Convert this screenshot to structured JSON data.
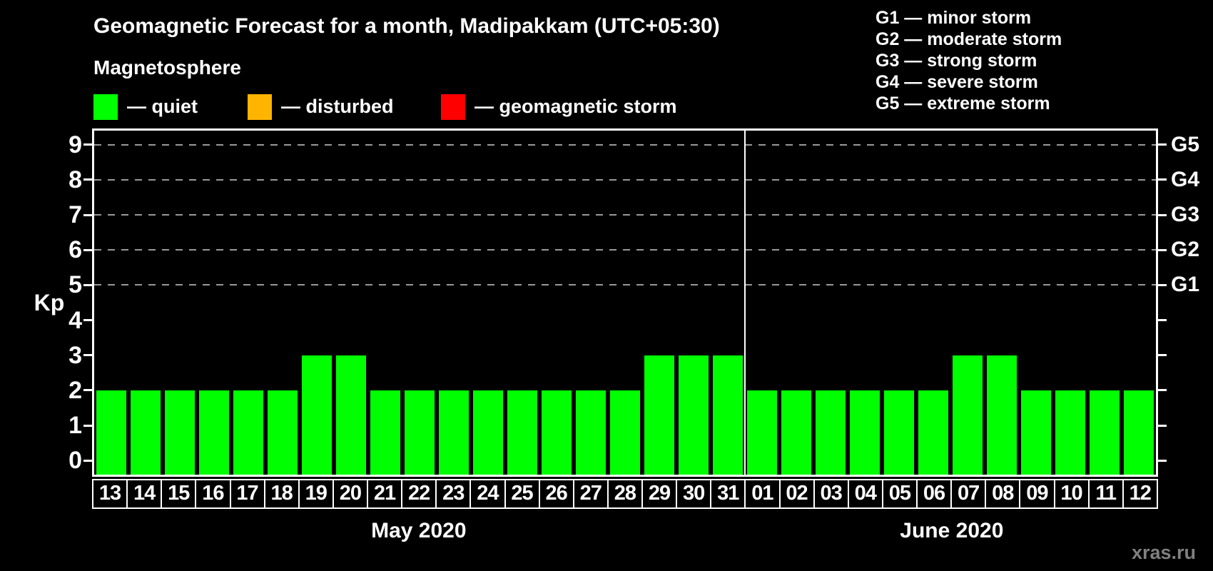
{
  "title": "Geomagnetic Forecast for a month, Madipakkam (UTC+05:30)",
  "subtitle": "Magnetosphere",
  "legend": {
    "items": [
      {
        "name": "quiet",
        "label": "— quiet",
        "color": "#00ff00"
      },
      {
        "name": "disturbed",
        "label": "— disturbed",
        "color": "#ffb400"
      },
      {
        "name": "geomagnetic-storm",
        "label": "— geomagnetic storm",
        "color": "#ff0000"
      }
    ]
  },
  "storm_scale_legend": [
    "G1 — minor storm",
    "G2 — moderate storm",
    "G3 — strong storm",
    "G4 — severe storm",
    "G5 — extreme storm"
  ],
  "watermark": "xras.ru",
  "colors": {
    "background": "#000000",
    "text": "#ffffff",
    "quiet": "#00ff00",
    "disturbed": "#ffb400",
    "storm": "#ff0000",
    "gridline": "#999999",
    "watermark": "#808080"
  },
  "chart_data": {
    "type": "bar",
    "title": "Geomagnetic Forecast for a month, Madipakkam (UTC+05:30)",
    "ylabel": "Kp",
    "ylim": [
      0,
      9
    ],
    "y_ticks": [
      0,
      1,
      2,
      3,
      4,
      5,
      6,
      7,
      8,
      9
    ],
    "gridline_values": [
      5,
      6,
      7,
      8,
      9
    ],
    "grid": "dashed-horizontal-on-storm-levels",
    "legend_position": "top",
    "bar_color": "#00ff00",
    "right_axis_labels": [
      {
        "value": 5,
        "label": "G1"
      },
      {
        "value": 6,
        "label": "G2"
      },
      {
        "value": 7,
        "label": "G3"
      },
      {
        "value": 8,
        "label": "G4"
      },
      {
        "value": 9,
        "label": "G5"
      }
    ],
    "groups": [
      {
        "label": "May 2020",
        "categories": [
          "13",
          "14",
          "15",
          "16",
          "17",
          "18",
          "19",
          "20",
          "21",
          "22",
          "23",
          "24",
          "25",
          "26",
          "27",
          "28",
          "29",
          "30",
          "31"
        ],
        "values": [
          2,
          2,
          2,
          2,
          2,
          2,
          3,
          3,
          2,
          2,
          2,
          2,
          2,
          2,
          2,
          2,
          3,
          3,
          3
        ]
      },
      {
        "label": "June 2020",
        "categories": [
          "01",
          "02",
          "03",
          "04",
          "05",
          "06",
          "07",
          "08",
          "09",
          "10",
          "11",
          "12"
        ],
        "values": [
          2,
          2,
          2,
          2,
          2,
          2,
          3,
          3,
          2,
          2,
          2,
          2
        ]
      }
    ]
  }
}
